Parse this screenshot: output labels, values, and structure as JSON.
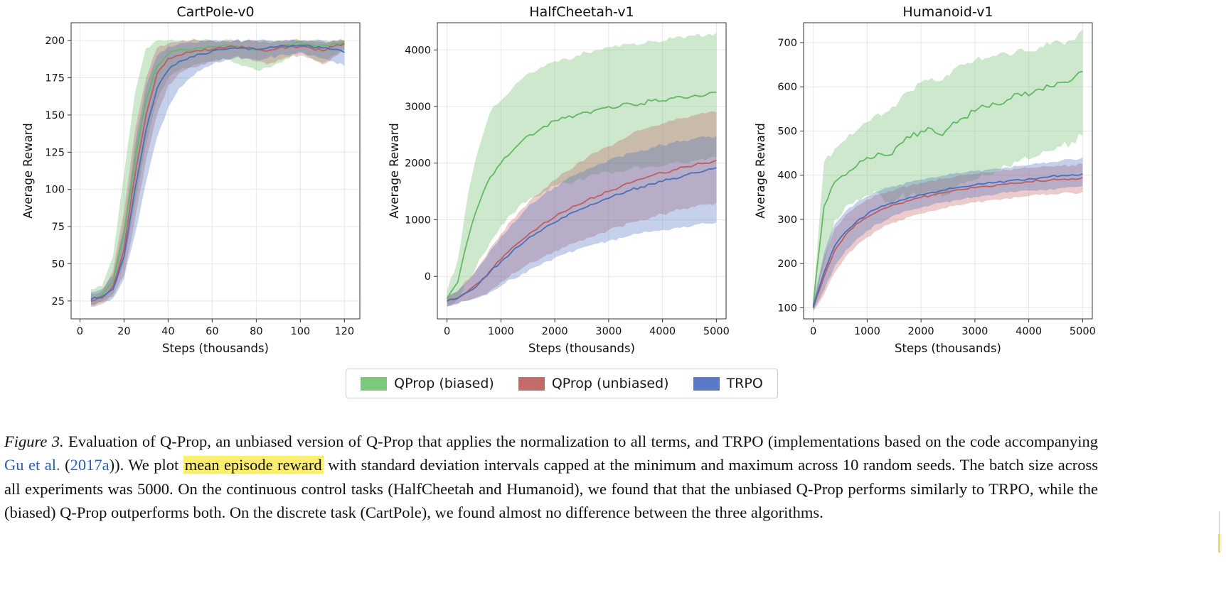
{
  "legend": {
    "items": [
      {
        "label": "QProp (biased)",
        "color": "#7cc87c"
      },
      {
        "label": "QProp (unbiased)",
        "color": "#c56a6a"
      },
      {
        "label": "TRPO",
        "color": "#5b79c9"
      }
    ]
  },
  "caption": {
    "segments": [
      {
        "type": "figlabel",
        "name": "figure-label",
        "text": "Figure 3."
      },
      {
        "type": "text",
        "name": "caption-text",
        "text": " Evaluation of Q-Prop, an unbiased version of Q-Prop that applies the normalization to all terms, and TRPO (implementations based on the code accompanying "
      },
      {
        "type": "link",
        "name": "citation-link",
        "text": "Gu et al."
      },
      {
        "type": "text",
        "name": "caption-text",
        "text": " ("
      },
      {
        "type": "link",
        "name": "citation-year-link",
        "text": "2017a"
      },
      {
        "type": "text",
        "name": "caption-text",
        "text": ")). We plot "
      },
      {
        "type": "highlight",
        "name": "highlighted-text",
        "text": "mean episode reward"
      },
      {
        "type": "text",
        "name": "caption-text",
        "text": " with standard deviation intervals capped at the minimum and maximum across 10 random seeds. The batch size across all experiments was 5000. On the continuous control tasks (HalfCheetah and Humanoid), we found that that the unbiased Q-Prop performs similarly to TRPO, while the (biased) Q-Prop outperforms both. On the discrete task (CartPole), we found almost no difference between the three algorithms."
      }
    ]
  },
  "chart_data": [
    {
      "type": "line",
      "title": "CartPole-v0",
      "xlabel": "Steps (thousands)",
      "ylabel": "Average Reward",
      "xlim": [
        -4,
        127
      ],
      "ylim": [
        13,
        212
      ],
      "xticks": [
        0,
        20,
        40,
        60,
        80,
        100,
        120
      ],
      "yticks": [
        25,
        50,
        75,
        100,
        125,
        150,
        175,
        200
      ],
      "grid": true,
      "x": [
        5,
        10,
        15,
        20,
        25,
        30,
        35,
        40,
        45,
        50,
        55,
        60,
        65,
        70,
        75,
        80,
        85,
        90,
        95,
        100,
        105,
        110,
        115,
        120
      ],
      "series": [
        {
          "name": "QProp (biased)",
          "color": "#63b963",
          "noise": 1.2,
          "mean": [
            27,
            29,
            38,
            70,
            120,
            160,
            183,
            191,
            194,
            193,
            195,
            196,
            197,
            196,
            195,
            194,
            195,
            196,
            197,
            199,
            197,
            196,
            198,
            199
          ],
          "lo": [
            23,
            25,
            30,
            50,
            90,
            130,
            160,
            175,
            180,
            182,
            185,
            186,
            188,
            185,
            183,
            180,
            182,
            185,
            188,
            193,
            188,
            185,
            190,
            193
          ],
          "hi": [
            33,
            35,
            55,
            110,
            165,
            195,
            200,
            200,
            200,
            200,
            200,
            200,
            200,
            200,
            200,
            200,
            200,
            200,
            200,
            200,
            200,
            200,
            200,
            200
          ]
        },
        {
          "name": "QProp (unbiased)",
          "color": "#c05d5d",
          "noise": 1.2,
          "mean": [
            25,
            27,
            35,
            60,
            110,
            150,
            178,
            188,
            190,
            192,
            193,
            194,
            195,
            196,
            195,
            194,
            193,
            195,
            196,
            196,
            195,
            193,
            196,
            198
          ],
          "lo": [
            21,
            23,
            28,
            42,
            80,
            120,
            150,
            170,
            178,
            182,
            184,
            186,
            188,
            189,
            188,
            186,
            184,
            187,
            189,
            190,
            188,
            184,
            189,
            194
          ],
          "hi": [
            30,
            32,
            45,
            85,
            140,
            175,
            195,
            198,
            199,
            200,
            200,
            200,
            200,
            200,
            200,
            200,
            199,
            200,
            200,
            200,
            200,
            199,
            200,
            200
          ]
        },
        {
          "name": "TRPO",
          "color": "#4a6fbf",
          "noise": 1.2,
          "mean": [
            26,
            28,
            33,
            55,
            100,
            140,
            168,
            180,
            186,
            189,
            191,
            193,
            194,
            195,
            195,
            194,
            195,
            196,
            196,
            197,
            196,
            195,
            194,
            192
          ],
          "lo": [
            22,
            24,
            27,
            40,
            70,
            105,
            135,
            155,
            168,
            175,
            180,
            184,
            186,
            188,
            188,
            187,
            188,
            190,
            190,
            192,
            190,
            188,
            186,
            183
          ],
          "hi": [
            31,
            33,
            42,
            75,
            130,
            170,
            190,
            196,
            198,
            199,
            200,
            200,
            200,
            200,
            200,
            200,
            200,
            200,
            200,
            200,
            200,
            200,
            200,
            200
          ]
        }
      ]
    },
    {
      "type": "line",
      "title": "HalfCheetah-v1",
      "xlabel": "Steps (thousands)",
      "ylabel": "Average Reward",
      "xlim": [
        -180,
        5180
      ],
      "ylim": [
        -750,
        4480
      ],
      "xticks": [
        0,
        1000,
        2000,
        3000,
        4000,
        5000
      ],
      "yticks": [
        0,
        1000,
        2000,
        3000,
        4000
      ],
      "grid": true,
      "x": [
        0,
        200,
        400,
        600,
        800,
        1000,
        1200,
        1400,
        1600,
        1800,
        2000,
        2200,
        2400,
        2600,
        2800,
        3000,
        3200,
        3400,
        3600,
        3800,
        4000,
        4200,
        4400,
        4600,
        4800,
        5000
      ],
      "series": [
        {
          "name": "QProp (biased)",
          "color": "#63b963",
          "noise": 45,
          "mean": [
            -400,
            -100,
            700,
            1300,
            1750,
            2000,
            2200,
            2400,
            2500,
            2650,
            2750,
            2800,
            2850,
            2900,
            2950,
            3000,
            3000,
            3050,
            3050,
            3100,
            3100,
            3150,
            3150,
            3200,
            3200,
            3250
          ],
          "lo": [
            -550,
            -400,
            -100,
            300,
            600,
            900,
            1100,
            1300,
            1400,
            1500,
            1600,
            1650,
            1700,
            1750,
            1800,
            1850,
            1850,
            1900,
            1900,
            1950,
            1950,
            2000,
            2000,
            2050,
            2050,
            2100
          ],
          "hi": [
            -250,
            300,
            1500,
            2300,
            2900,
            3100,
            3300,
            3500,
            3600,
            3700,
            3800,
            3850,
            3900,
            3950,
            4000,
            4050,
            4050,
            4100,
            4100,
            4150,
            4150,
            4200,
            4200,
            4250,
            4250,
            4300
          ]
        },
        {
          "name": "QProp (unbiased)",
          "color": "#c05d5d",
          "noise": 30,
          "mean": [
            -430,
            -380,
            -250,
            -100,
            100,
            300,
            500,
            650,
            800,
            950,
            1050,
            1150,
            1250,
            1350,
            1420,
            1500,
            1570,
            1650,
            1720,
            1780,
            1830,
            1880,
            1930,
            1970,
            2000,
            2050
          ],
          "lo": [
            -520,
            -480,
            -420,
            -350,
            -250,
            -100,
            50,
            150,
            250,
            350,
            450,
            520,
            600,
            680,
            750,
            820,
            880,
            950,
            1000,
            1050,
            1100,
            1150,
            1200,
            1230,
            1260,
            1300
          ],
          "hi": [
            -340,
            -250,
            -50,
            200,
            500,
            750,
            1000,
            1200,
            1400,
            1550,
            1700,
            1850,
            1980,
            2100,
            2200,
            2300,
            2400,
            2500,
            2580,
            2650,
            2700,
            2750,
            2800,
            2850,
            2880,
            2900
          ]
        },
        {
          "name": "TRPO",
          "color": "#4a6fbf",
          "noise": 30,
          "mean": [
            -440,
            -390,
            -270,
            -120,
            80,
            260,
            430,
            580,
            720,
            850,
            950,
            1050,
            1150,
            1230,
            1300,
            1380,
            1450,
            1520,
            1580,
            1630,
            1680,
            1730,
            1780,
            1830,
            1870,
            1920
          ],
          "lo": [
            -530,
            -490,
            -430,
            -370,
            -280,
            -170,
            -50,
            50,
            150,
            250,
            330,
            400,
            470,
            530,
            580,
            630,
            680,
            720,
            760,
            790,
            820,
            850,
            880,
            910,
            930,
            950
          ],
          "hi": [
            -350,
            -270,
            -80,
            180,
            450,
            700,
            920,
            1120,
            1300,
            1450,
            1580,
            1700,
            1800,
            1900,
            1980,
            2050,
            2120,
            2180,
            2230,
            2280,
            2320,
            2360,
            2400,
            2430,
            2460,
            2480
          ]
        }
      ]
    },
    {
      "type": "line",
      "title": "Humanoid-v1",
      "xlabel": "Steps (thousands)",
      "ylabel": "Average Reward",
      "xlim": [
        -180,
        5180
      ],
      "ylim": [
        75,
        745
      ],
      "xticks": [
        0,
        1000,
        2000,
        3000,
        4000,
        5000
      ],
      "yticks": [
        100,
        200,
        300,
        400,
        500,
        600,
        700
      ],
      "grid": true,
      "x": [
        0,
        200,
        400,
        600,
        800,
        1000,
        1200,
        1400,
        1600,
        1800,
        2000,
        2200,
        2400,
        2600,
        2800,
        3000,
        3200,
        3400,
        3600,
        3800,
        4000,
        4200,
        4400,
        4600,
        4800,
        5000
      ],
      "series": [
        {
          "name": "QProp (biased)",
          "color": "#63b963",
          "noise": 9,
          "mean": [
            105,
            330,
            385,
            400,
            420,
            440,
            450,
            445,
            470,
            485,
            500,
            505,
            490,
            520,
            530,
            545,
            555,
            560,
            570,
            585,
            580,
            595,
            600,
            610,
            615,
            635
          ],
          "lo": [
            95,
            200,
            300,
            330,
            345,
            355,
            360,
            340,
            350,
            355,
            360,
            365,
            350,
            370,
            380,
            390,
            400,
            410,
            420,
            430,
            435,
            445,
            455,
            465,
            475,
            490
          ],
          "hi": [
            115,
            430,
            460,
            480,
            500,
            520,
            540,
            545,
            570,
            590,
            610,
            620,
            615,
            640,
            650,
            660,
            665,
            670,
            675,
            685,
            680,
            690,
            695,
            700,
            705,
            730
          ]
        },
        {
          "name": "QProp (unbiased)",
          "color": "#c05d5d",
          "noise": 3,
          "mean": [
            100,
            170,
            230,
            265,
            290,
            305,
            318,
            328,
            336,
            343,
            350,
            355,
            360,
            365,
            368,
            372,
            375,
            378,
            380,
            382,
            385,
            387,
            389,
            390,
            392,
            395
          ],
          "lo": [
            92,
            130,
            180,
            215,
            240,
            260,
            275,
            288,
            298,
            306,
            313,
            319,
            325,
            330,
            334,
            338,
            342,
            345,
            348,
            350,
            353,
            355,
            357,
            359,
            360,
            362
          ],
          "hi": [
            110,
            215,
            280,
            310,
            330,
            345,
            356,
            364,
            371,
            377,
            383,
            388,
            392,
            396,
            400,
            403,
            406,
            409,
            412,
            414,
            416,
            418,
            420,
            421,
            423,
            425
          ]
        },
        {
          "name": "TRPO",
          "color": "#4a6fbf",
          "noise": 3,
          "mean": [
            102,
            180,
            240,
            272,
            295,
            312,
            325,
            335,
            343,
            350,
            356,
            361,
            366,
            370,
            374,
            378,
            381,
            384,
            387,
            390,
            392,
            394,
            397,
            399,
            401,
            403
          ],
          "lo": [
            94,
            140,
            195,
            230,
            255,
            275,
            290,
            302,
            312,
            320,
            327,
            333,
            338,
            343,
            347,
            351,
            354,
            357,
            360,
            363,
            365,
            367,
            369,
            371,
            373,
            375
          ],
          "hi": [
            112,
            225,
            290,
            318,
            338,
            352,
            363,
            372,
            379,
            385,
            390,
            395,
            399,
            403,
            406,
            409,
            412,
            415,
            418,
            421,
            423,
            426,
            430,
            433,
            436,
            440
          ]
        }
      ]
    }
  ]
}
